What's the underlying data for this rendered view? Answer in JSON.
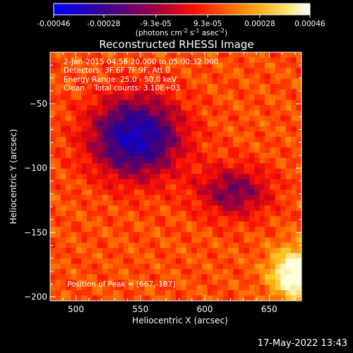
{
  "colorbar": {
    "ticks": [
      {
        "value": -0.00046,
        "label": "-0.00046"
      },
      {
        "value": -0.00028,
        "label": "-0.00028"
      },
      {
        "value": -9.3e-05,
        "label": "-9.3e-05"
      },
      {
        "value": 9.3e-05,
        "label": "9.3e-05"
      },
      {
        "value": 0.00028,
        "label": "0.00028"
      },
      {
        "value": 0.00046,
        "label": "0.00046"
      }
    ],
    "range": [
      -0.00046,
      0.00046
    ],
    "unit_main": "(photons cm",
    "unit_exp1": "-2",
    "unit_mid": " s",
    "unit_exp2": "-1",
    "unit_tail": " asec",
    "unit_exp3": "-2",
    "unit_close": ")",
    "colors": [
      "#0000ff",
      "#400070",
      "#ff0000",
      "#ffa000",
      "#ffff80",
      "#ffffff"
    ]
  },
  "chart_data": {
    "type": "heatmap",
    "title": "Reconstructed RHESSI Image",
    "xlabel": "Heliocentric X (arcsec)",
    "ylabel": "Heliocentric Y (arcsec)",
    "xlim": [
      480,
      675
    ],
    "ylim": [
      -203,
      -10
    ],
    "x_ticks": [
      500,
      550,
      600,
      650
    ],
    "y_ticks": [
      -50,
      -100,
      -150,
      -200
    ],
    "x_tick_labels": [
      "500",
      "550",
      "600",
      "650"
    ],
    "y_tick_labels": [
      "−50",
      "−100",
      "−150",
      "−200"
    ],
    "annotation_lines": [
      "2-Jan-2015 04:56:20.000 to 05:00:32.000",
      "Detectors: 3F 6F 7F 9F, Att 0",
      "Energy Range: 25.0 - 50.0 keV",
      "Clean    Total counts: 3.10E+03"
    ],
    "peak_label": "Position of Peak = [667,-187]",
    "peak": [
      667,
      -187
    ]
  },
  "footer": {
    "timestamp": "17-May-2022 13:43"
  }
}
